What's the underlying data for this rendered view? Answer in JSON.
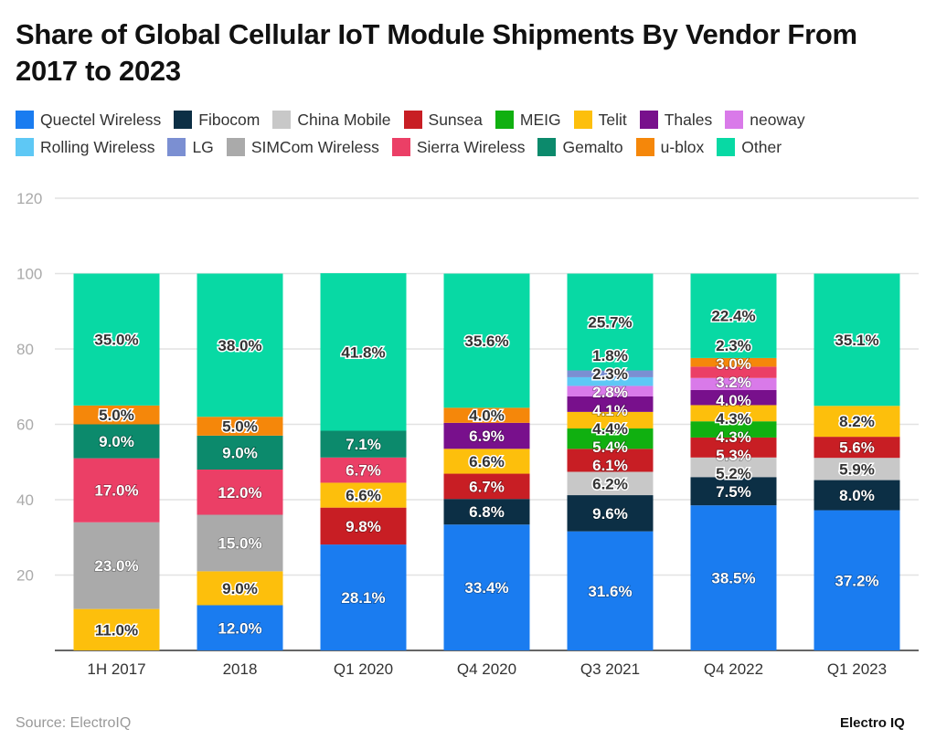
{
  "chart_data": {
    "type": "bar",
    "stacked": true,
    "title": "Share of Global Cellular IoT Module Shipments By Vendor From 2017 to 2023",
    "xlabel": "",
    "ylabel": "",
    "ylim": [
      0,
      120
    ],
    "yticks": [
      20,
      40,
      60,
      80,
      100,
      120
    ],
    "grid": true,
    "legend_position": "top",
    "categories": [
      "1H 2017",
      "2018",
      "Q1 2020",
      "Q4 2020",
      "Q3 2021",
      "Q4 2022",
      "Q1 2023"
    ],
    "series": [
      {
        "name": "Quectel Wireless",
        "color": "#1a7cf0",
        "values": [
          null,
          12.0,
          28.1,
          33.4,
          31.6,
          38.5,
          37.2
        ]
      },
      {
        "name": "Fibocom",
        "color": "#0c2f45",
        "values": [
          null,
          null,
          null,
          6.8,
          9.6,
          7.5,
          8.0
        ]
      },
      {
        "name": "China Mobile",
        "color": "#c8c8c8",
        "values": [
          null,
          null,
          null,
          null,
          6.2,
          5.2,
          5.9
        ]
      },
      {
        "name": "Sunsea",
        "color": "#c81e24",
        "values": [
          null,
          null,
          9.8,
          6.7,
          6.1,
          5.3,
          5.6
        ]
      },
      {
        "name": "MEIG",
        "color": "#10b010",
        "values": [
          null,
          null,
          null,
          null,
          5.4,
          4.3,
          null
        ]
      },
      {
        "name": "Telit",
        "color": "#fdbf0c",
        "values": [
          11.0,
          9.0,
          6.6,
          6.6,
          4.4,
          4.3,
          8.2
        ]
      },
      {
        "name": "Thales",
        "color": "#78108c",
        "values": [
          null,
          null,
          null,
          6.9,
          4.1,
          4.0,
          null
        ]
      },
      {
        "name": "neoway",
        "color": "#d97ae9",
        "values": [
          null,
          null,
          null,
          null,
          2.8,
          3.2,
          null
        ]
      },
      {
        "name": "Rolling Wireless",
        "color": "#5ec8f5",
        "values": [
          null,
          null,
          null,
          null,
          2.3,
          null,
          null
        ]
      },
      {
        "name": "LG",
        "color": "#7b8fd2",
        "values": [
          null,
          null,
          null,
          null,
          1.8,
          null,
          null
        ]
      },
      {
        "name": "SIMCom Wireless",
        "color": "#aaaaaa",
        "values": [
          23.0,
          15.0,
          null,
          null,
          null,
          null,
          null
        ]
      },
      {
        "name": "Sierra Wireless",
        "color": "#eb3f66",
        "values": [
          17.0,
          12.0,
          6.7,
          null,
          null,
          3.0,
          null
        ]
      },
      {
        "name": "Gemalto",
        "color": "#0c8a6c",
        "values": [
          9.0,
          9.0,
          7.1,
          null,
          null,
          null,
          null
        ]
      },
      {
        "name": "u-blox",
        "color": "#f5870a",
        "values": [
          5.0,
          5.0,
          null,
          4.0,
          null,
          2.3,
          null
        ]
      },
      {
        "name": "Other",
        "color": "#08d9a4",
        "values": [
          35.0,
          38.0,
          41.8,
          35.6,
          25.7,
          22.4,
          35.1
        ]
      }
    ]
  },
  "source": "Source: ElectroIQ",
  "brand": "Electro IQ"
}
